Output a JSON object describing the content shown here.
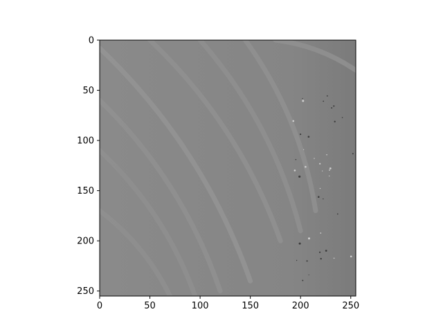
{
  "chart_data": {
    "type": "heatmap",
    "colormap": "gray",
    "image_size": [
      256,
      256
    ],
    "origin": "upper",
    "xlim": [
      0,
      255
    ],
    "ylim": [
      255,
      0
    ],
    "x_ticks": [
      0,
      50,
      100,
      150,
      200,
      250
    ],
    "y_ticks": [
      0,
      50,
      100,
      150,
      200,
      250
    ],
    "title": "",
    "xlabel": "",
    "ylabel": "",
    "background_gray_level": 0.5,
    "description_features": {
      "curved_streaks": [
        {
          "from": [
            0,
            8
          ],
          "to": [
            150,
            240
          ],
          "level": 0.58
        },
        {
          "from": [
            0,
            60
          ],
          "to": [
            120,
            250
          ],
          "level": 0.57
        },
        {
          "from": [
            0,
            110
          ],
          "to": [
            95,
            255
          ],
          "level": 0.56
        },
        {
          "from": [
            0,
            170
          ],
          "to": [
            70,
            255
          ],
          "level": 0.56
        },
        {
          "from": [
            50,
            0
          ],
          "to": [
            180,
            200
          ],
          "level": 0.57
        },
        {
          "from": [
            100,
            0
          ],
          "to": [
            200,
            190
          ],
          "level": 0.56
        },
        {
          "from": [
            145,
            0
          ],
          "to": [
            215,
            170
          ],
          "level": 0.57
        },
        {
          "from": [
            175,
            0
          ],
          "to": [
            255,
            30
          ],
          "level": 0.57
        }
      ]
    }
  }
}
